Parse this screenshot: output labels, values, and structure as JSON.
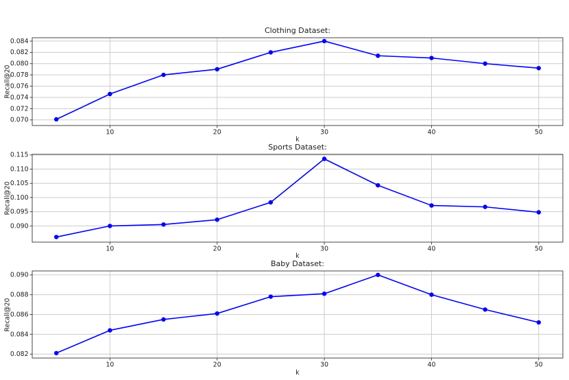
{
  "figure": {
    "background": "#ffffff",
    "accent_line_color": "#0000ff"
  },
  "chart_data": [
    {
      "type": "line",
      "title": "Clothing Dataset:",
      "xlabel": "k",
      "ylabel": "Recall@20",
      "x": [
        5,
        10,
        15,
        20,
        25,
        30,
        35,
        40,
        45,
        50
      ],
      "values": [
        0.0701,
        0.0746,
        0.078,
        0.079,
        0.082,
        0.084,
        0.0814,
        0.081,
        0.08,
        0.0792
      ],
      "xticks": [
        10,
        20,
        30,
        40,
        50
      ],
      "yticks": [
        0.07,
        0.072,
        0.074,
        0.076,
        0.078,
        0.08,
        0.082,
        0.084
      ],
      "xlim": [
        2.75,
        52.25
      ],
      "ylim": [
        0.069,
        0.0846
      ],
      "grid": true,
      "legend": "none",
      "line_color": "#0000ff",
      "marker": "circle"
    },
    {
      "type": "line",
      "title": "Sports Dataset:",
      "xlabel": "k",
      "ylabel": "Recall@20",
      "x": [
        5,
        10,
        15,
        20,
        25,
        30,
        35,
        40,
        45,
        50
      ],
      "values": [
        0.0861,
        0.09,
        0.0905,
        0.0922,
        0.0983,
        0.1136,
        0.1043,
        0.0972,
        0.0967,
        0.0948
      ],
      "xticks": [
        10,
        20,
        30,
        40,
        50
      ],
      "yticks": [
        0.09,
        0.095,
        0.1,
        0.105,
        0.11,
        0.115
      ],
      "xlim": [
        2.75,
        52.25
      ],
      "ylim": [
        0.0843,
        0.1152
      ],
      "grid": true,
      "legend": "none",
      "line_color": "#0000ff",
      "marker": "circle"
    },
    {
      "type": "line",
      "title": "Baby Dataset:",
      "xlabel": "k",
      "ylabel": "Recall@20",
      "x": [
        5,
        10,
        15,
        20,
        25,
        30,
        35,
        40,
        45,
        50
      ],
      "values": [
        0.0821,
        0.0844,
        0.0855,
        0.0861,
        0.0878,
        0.0881,
        0.09,
        0.088,
        0.0865,
        0.0852
      ],
      "xticks": [
        10,
        20,
        30,
        40,
        50
      ],
      "yticks": [
        0.082,
        0.084,
        0.086,
        0.088,
        0.09
      ],
      "xlim": [
        2.75,
        52.25
      ],
      "ylim": [
        0.0816,
        0.0904
      ],
      "grid": true,
      "legend": "none",
      "line_color": "#0000ff",
      "marker": "circle"
    }
  ]
}
